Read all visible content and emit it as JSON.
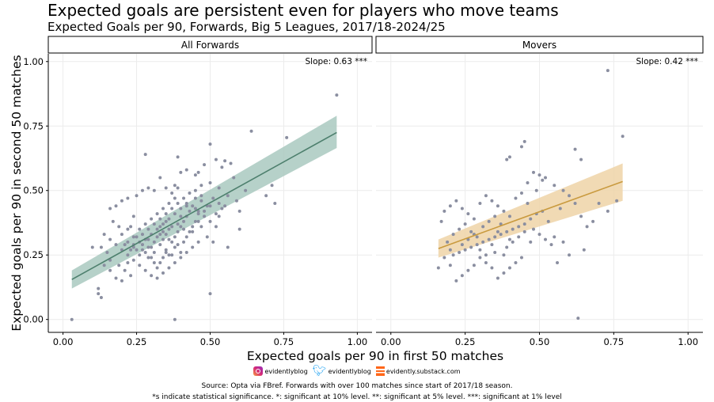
{
  "chart_data": {
    "type": "scatter",
    "title": "Expected goals are persistent even for players who move teams",
    "subtitle": "Expected Goals per 90, Forwards, Big 5 Leagues, 2017/18-2024/25",
    "xlabel": "Expected goals per 90 in first 50 matches",
    "ylabel": "Expected goals per 90 in second 50 matches",
    "xlim": [
      -0.05,
      1.05
    ],
    "ylim": [
      -0.05,
      1.03
    ],
    "xticks": [
      "0.00",
      "0.25",
      "0.50",
      "0.75",
      "1.00"
    ],
    "yticks": [
      "0.00",
      "0.25",
      "0.50",
      "0.75",
      "1.00"
    ],
    "grid": true,
    "panels": [
      {
        "name": "All Forwards",
        "annotation": "Slope: 0.63 ***",
        "color": "#4d7f6d",
        "band_color": "#a9c9bf",
        "fit": {
          "x0": 0.03,
          "y0": 0.155,
          "x1": 0.93,
          "y1": 0.725
        },
        "band": {
          "lower_start": 0.12,
          "upper_start": 0.19,
          "lower_end": 0.665,
          "upper_end": 0.79
        },
        "points": [
          [
            0.03,
            0.0
          ],
          [
            0.93,
            0.87
          ],
          [
            0.76,
            0.705
          ],
          [
            0.64,
            0.73
          ],
          [
            0.28,
            0.64
          ],
          [
            0.39,
            0.63
          ],
          [
            0.5,
            0.68
          ],
          [
            0.52,
            0.62
          ],
          [
            0.55,
            0.615
          ],
          [
            0.57,
            0.605
          ],
          [
            0.54,
            0.59
          ],
          [
            0.48,
            0.6
          ],
          [
            0.45,
            0.56
          ],
          [
            0.47,
            0.52
          ],
          [
            0.5,
            0.53
          ],
          [
            0.58,
            0.55
          ],
          [
            0.62,
            0.5
          ],
          [
            0.69,
            0.48
          ],
          [
            0.71,
            0.52
          ],
          [
            0.72,
            0.45
          ],
          [
            0.6,
            0.42
          ],
          [
            0.55,
            0.44
          ],
          [
            0.53,
            0.4
          ],
          [
            0.6,
            0.35
          ],
          [
            0.5,
            0.1
          ],
          [
            0.38,
            0.0
          ],
          [
            0.46,
            0.57
          ],
          [
            0.42,
            0.58
          ],
          [
            0.4,
            0.57
          ],
          [
            0.38,
            0.52
          ],
          [
            0.35,
            0.51
          ],
          [
            0.33,
            0.55
          ],
          [
            0.31,
            0.5
          ],
          [
            0.29,
            0.51
          ],
          [
            0.27,
            0.5
          ],
          [
            0.25,
            0.48
          ],
          [
            0.22,
            0.47
          ],
          [
            0.2,
            0.46
          ],
          [
            0.18,
            0.44
          ],
          [
            0.16,
            0.43
          ],
          [
            0.14,
            0.33
          ],
          [
            0.13,
            0.28
          ],
          [
            0.12,
            0.12
          ],
          [
            0.12,
            0.1
          ],
          [
            0.13,
            0.085
          ],
          [
            0.1,
            0.28
          ],
          [
            0.14,
            0.21
          ],
          [
            0.16,
            0.19
          ],
          [
            0.18,
            0.16
          ],
          [
            0.2,
            0.15
          ],
          [
            0.22,
            0.35
          ],
          [
            0.24,
            0.32
          ],
          [
            0.26,
            0.3
          ],
          [
            0.28,
            0.31
          ],
          [
            0.3,
            0.33
          ],
          [
            0.32,
            0.35
          ],
          [
            0.34,
            0.37
          ],
          [
            0.36,
            0.39
          ],
          [
            0.38,
            0.41
          ],
          [
            0.4,
            0.43
          ],
          [
            0.42,
            0.45
          ],
          [
            0.44,
            0.44
          ],
          [
            0.46,
            0.42
          ],
          [
            0.48,
            0.4
          ],
          [
            0.5,
            0.38
          ],
          [
            0.52,
            0.36
          ],
          [
            0.46,
            0.3
          ],
          [
            0.44,
            0.28
          ],
          [
            0.42,
            0.26
          ],
          [
            0.4,
            0.24
          ],
          [
            0.38,
            0.22
          ],
          [
            0.36,
            0.2
          ],
          [
            0.34,
            0.18
          ],
          [
            0.32,
            0.16
          ],
          [
            0.3,
            0.17
          ],
          [
            0.28,
            0.19
          ],
          [
            0.26,
            0.21
          ],
          [
            0.24,
            0.23
          ],
          [
            0.22,
            0.25
          ],
          [
            0.2,
            0.27
          ],
          [
            0.18,
            0.29
          ],
          [
            0.16,
            0.31
          ],
          [
            0.3,
            0.28
          ],
          [
            0.31,
            0.3
          ],
          [
            0.32,
            0.32
          ],
          [
            0.33,
            0.29
          ],
          [
            0.34,
            0.31
          ],
          [
            0.35,
            0.33
          ],
          [
            0.36,
            0.35
          ],
          [
            0.37,
            0.3
          ],
          [
            0.38,
            0.32
          ],
          [
            0.39,
            0.34
          ],
          [
            0.4,
            0.36
          ],
          [
            0.41,
            0.38
          ],
          [
            0.42,
            0.4
          ],
          [
            0.43,
            0.34
          ],
          [
            0.44,
            0.36
          ],
          [
            0.45,
            0.38
          ],
          [
            0.47,
            0.46
          ],
          [
            0.49,
            0.44
          ],
          [
            0.51,
            0.47
          ],
          [
            0.53,
            0.45
          ],
          [
            0.56,
            0.48
          ],
          [
            0.59,
            0.46
          ],
          [
            0.25,
            0.27
          ],
          [
            0.27,
            0.29
          ],
          [
            0.29,
            0.24
          ],
          [
            0.31,
            0.26
          ],
          [
            0.33,
            0.22
          ],
          [
            0.35,
            0.27
          ],
          [
            0.37,
            0.25
          ],
          [
            0.39,
            0.29
          ],
          [
            0.26,
            0.35
          ],
          [
            0.28,
            0.37
          ],
          [
            0.3,
            0.39
          ],
          [
            0.32,
            0.41
          ],
          [
            0.34,
            0.43
          ],
          [
            0.36,
            0.45
          ],
          [
            0.38,
            0.47
          ],
          [
            0.24,
            0.4
          ],
          [
            0.22,
            0.3
          ],
          [
            0.2,
            0.33
          ],
          [
            0.19,
            0.36
          ],
          [
            0.21,
            0.29
          ],
          [
            0.23,
            0.27
          ],
          [
            0.27,
            0.33
          ],
          [
            0.29,
            0.35
          ],
          [
            0.33,
            0.39
          ],
          [
            0.35,
            0.41
          ],
          [
            0.37,
            0.43
          ],
          [
            0.39,
            0.45
          ],
          [
            0.41,
            0.47
          ],
          [
            0.43,
            0.49
          ],
          [
            0.45,
            0.47
          ],
          [
            0.35,
            0.26
          ],
          [
            0.41,
            0.3
          ],
          [
            0.43,
            0.42
          ],
          [
            0.47,
            0.36
          ],
          [
            0.49,
            0.32
          ],
          [
            0.51,
            0.3
          ],
          [
            0.56,
            0.28
          ],
          [
            0.25,
            0.32
          ],
          [
            0.23,
            0.36
          ],
          [
            0.17,
            0.38
          ],
          [
            0.15,
            0.26
          ],
          [
            0.16,
            0.23
          ],
          [
            0.19,
            0.21
          ],
          [
            0.21,
            0.19
          ],
          [
            0.23,
            0.17
          ],
          [
            0.28,
            0.26
          ],
          [
            0.3,
            0.24
          ],
          [
            0.32,
            0.2
          ],
          [
            0.34,
            0.34
          ],
          [
            0.36,
            0.31
          ],
          [
            0.38,
            0.28
          ],
          [
            0.4,
            0.26
          ],
          [
            0.42,
            0.32
          ],
          [
            0.44,
            0.34
          ],
          [
            0.46,
            0.38
          ],
          [
            0.48,
            0.42
          ],
          [
            0.5,
            0.44
          ],
          [
            0.52,
            0.41
          ],
          [
            0.54,
            0.43
          ],
          [
            0.37,
            0.36
          ],
          [
            0.33,
            0.33
          ],
          [
            0.29,
            0.28
          ],
          [
            0.26,
            0.25
          ],
          [
            0.31,
            0.37
          ],
          [
            0.35,
            0.38
          ],
          [
            0.27,
            0.27
          ],
          [
            0.24,
            0.28
          ],
          [
            0.42,
            0.44
          ],
          [
            0.4,
            0.4
          ],
          [
            0.45,
            0.43
          ],
          [
            0.39,
            0.37
          ],
          [
            0.36,
            0.25
          ],
          [
            0.34,
            0.24
          ],
          [
            0.31,
            0.22
          ],
          [
            0.33,
            0.36
          ],
          [
            0.29,
            0.31
          ],
          [
            0.24,
            0.29
          ],
          [
            0.22,
            0.22
          ],
          [
            0.39,
            0.51
          ],
          [
            0.37,
            0.49
          ],
          [
            0.45,
            0.5
          ],
          [
            0.47,
            0.48
          ],
          [
            0.41,
            0.35
          ],
          [
            0.46,
            0.41
          ],
          [
            0.53,
            0.51
          ]
        ]
      },
      {
        "name": "Movers",
        "annotation": "Slope: 0.42 ***",
        "color": "#c99a3e",
        "band_color": "#efd3a7",
        "fit": {
          "x0": 0.16,
          "y0": 0.275,
          "x1": 0.78,
          "y1": 0.535
        },
        "band": {
          "lower_start": 0.24,
          "upper_start": 0.31,
          "lower_end": 0.46,
          "upper_end": 0.605
        },
        "points": [
          [
            0.73,
            0.965
          ],
          [
            0.78,
            0.71
          ],
          [
            0.45,
            0.69
          ],
          [
            0.44,
            0.67
          ],
          [
            0.4,
            0.63
          ],
          [
            0.39,
            0.62
          ],
          [
            0.62,
            0.66
          ],
          [
            0.64,
            0.62
          ],
          [
            0.5,
            0.56
          ],
          [
            0.46,
            0.53
          ],
          [
            0.49,
            0.5
          ],
          [
            0.51,
            0.54
          ],
          [
            0.48,
            0.57
          ],
          [
            0.52,
            0.55
          ],
          [
            0.55,
            0.52
          ],
          [
            0.58,
            0.5
          ],
          [
            0.6,
            0.48
          ],
          [
            0.62,
            0.45
          ],
          [
            0.64,
            0.4
          ],
          [
            0.66,
            0.36
          ],
          [
            0.65,
            0.27
          ],
          [
            0.63,
            0.005
          ],
          [
            0.58,
            0.3
          ],
          [
            0.55,
            0.32
          ],
          [
            0.53,
            0.38
          ],
          [
            0.51,
            0.42
          ],
          [
            0.49,
            0.41
          ],
          [
            0.47,
            0.39
          ],
          [
            0.45,
            0.37
          ],
          [
            0.43,
            0.36
          ],
          [
            0.41,
            0.35
          ],
          [
            0.39,
            0.34
          ],
          [
            0.37,
            0.33
          ],
          [
            0.35,
            0.32
          ],
          [
            0.33,
            0.31
          ],
          [
            0.31,
            0.3
          ],
          [
            0.29,
            0.29
          ],
          [
            0.27,
            0.28
          ],
          [
            0.25,
            0.27
          ],
          [
            0.23,
            0.26
          ],
          [
            0.21,
            0.25
          ],
          [
            0.19,
            0.3
          ],
          [
            0.17,
            0.38
          ],
          [
            0.18,
            0.42
          ],
          [
            0.2,
            0.44
          ],
          [
            0.22,
            0.46
          ],
          [
            0.24,
            0.43
          ],
          [
            0.26,
            0.41
          ],
          [
            0.28,
            0.39
          ],
          [
            0.3,
            0.45
          ],
          [
            0.32,
            0.48
          ],
          [
            0.34,
            0.46
          ],
          [
            0.36,
            0.44
          ],
          [
            0.38,
            0.42
          ],
          [
            0.4,
            0.4
          ],
          [
            0.42,
            0.47
          ],
          [
            0.44,
            0.49
          ],
          [
            0.46,
            0.45
          ],
          [
            0.48,
            0.35
          ],
          [
            0.5,
            0.33
          ],
          [
            0.52,
            0.31
          ],
          [
            0.54,
            0.29
          ],
          [
            0.56,
            0.22
          ],
          [
            0.6,
            0.25
          ],
          [
            0.44,
            0.24
          ],
          [
            0.42,
            0.22
          ],
          [
            0.4,
            0.2
          ],
          [
            0.38,
            0.18
          ],
          [
            0.36,
            0.16
          ],
          [
            0.34,
            0.2
          ],
          [
            0.32,
            0.22
          ],
          [
            0.3,
            0.24
          ],
          [
            0.28,
            0.21
          ],
          [
            0.26,
            0.19
          ],
          [
            0.24,
            0.17
          ],
          [
            0.22,
            0.15
          ],
          [
            0.2,
            0.21
          ],
          [
            0.18,
            0.24
          ],
          [
            0.16,
            0.2
          ],
          [
            0.21,
            0.33
          ],
          [
            0.23,
            0.35
          ],
          [
            0.25,
            0.37
          ],
          [
            0.27,
            0.34
          ],
          [
            0.29,
            0.32
          ],
          [
            0.31,
            0.36
          ],
          [
            0.33,
            0.38
          ],
          [
            0.35,
            0.4
          ],
          [
            0.37,
            0.37
          ],
          [
            0.39,
            0.28
          ],
          [
            0.41,
            0.3
          ],
          [
            0.43,
            0.32
          ],
          [
            0.45,
            0.34
          ],
          [
            0.47,
            0.3
          ],
          [
            0.26,
            0.31
          ],
          [
            0.28,
            0.33
          ],
          [
            0.3,
            0.27
          ],
          [
            0.32,
            0.25
          ],
          [
            0.34,
            0.29
          ],
          [
            0.36,
            0.34
          ],
          [
            0.4,
            0.31
          ],
          [
            0.24,
            0.29
          ],
          [
            0.2,
            0.27
          ],
          [
            0.7,
            0.45
          ],
          [
            0.73,
            0.42
          ],
          [
            0.76,
            0.46
          ],
          [
            0.68,
            0.38
          ],
          [
            0.57,
            0.43
          ],
          [
            0.35,
            0.26
          ],
          [
            0.38,
            0.25
          ]
        ]
      }
    ]
  },
  "footer": {
    "instagram": "evidentlyblog",
    "twitter": "evidentlyblog",
    "substack": "evidently.substack.com",
    "source": "Source: Opta via FBref. Forwards with over 100 matches since start of 2017/18 season.",
    "note": "*s indicate statistical significance. *: significant at 10% level. **: significant at 5% level. ***: significant at 1% level"
  }
}
